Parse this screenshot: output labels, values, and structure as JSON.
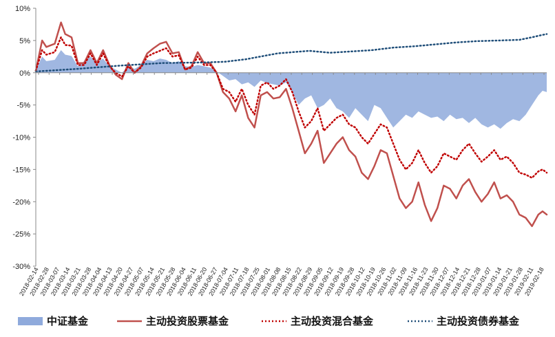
{
  "chart_data": {
    "type": "line",
    "title": "",
    "xlabel": "",
    "ylabel": "",
    "ylim": [
      -30,
      10
    ],
    "y_ticks": [
      10,
      5,
      0,
      -5,
      -10,
      -15,
      -20,
      -25,
      -30
    ],
    "y_tick_labels": [
      "10%",
      "5%",
      "0%",
      "-5%",
      "-10%",
      "-15%",
      "-20%",
      "-25%",
      "-30%"
    ],
    "grid": false,
    "legend_position": "bottom",
    "x_tick_labels": [
      "2018-02-14",
      "2018-02-28",
      "2018-03-07",
      "2018-03-14",
      "2018-03-21",
      "2018-03-28",
      "2018-04-04",
      "2018-04-13",
      "2018-04-20",
      "2018-04-27",
      "2018-05-07",
      "2018-05-14",
      "2018-05-21",
      "2018-05-28",
      "2018-06-04",
      "2018-06-11",
      "2018-06-20",
      "2018-06-27",
      "2018-07-04",
      "2018-07-11",
      "2018-07-18",
      "2018-07-25",
      "2018-08-01",
      "2018-08-08",
      "2018-08-15",
      "2018-08-22",
      "2018-08-29",
      "2018-09-05",
      "2018-09-12",
      "2018-09-19",
      "2018-09-28",
      "2018-10-12",
      "2018-10-19",
      "2018-10-26",
      "2018-11-02",
      "2018-11-09",
      "2018-11-16",
      "2018-11-23",
      "2018-11-30",
      "2018-12-07",
      "2018-12-14",
      "2018-12-21",
      "2018-12-28",
      "2019-01-07",
      "2019-01-14",
      "2019-01-21",
      "2019-01-28",
      "2019-02-11",
      "2019-02-18"
    ],
    "x_point_count": 244,
    "series": [
      {
        "name": "中证基金",
        "style": "area",
        "color": "#8faadc",
        "values": [
          [
            0,
            0.4
          ],
          [
            3,
            2.5
          ],
          [
            5,
            1.8
          ],
          [
            9,
            2
          ],
          [
            12,
            3.5
          ],
          [
            14,
            2.8
          ],
          [
            17,
            2.6
          ],
          [
            20,
            1
          ],
          [
            23,
            1.8
          ],
          [
            26,
            2.5
          ],
          [
            29,
            1.6
          ],
          [
            32,
            2.2
          ],
          [
            35,
            1
          ],
          [
            38,
            0.5
          ],
          [
            41,
            0
          ],
          [
            44,
            1
          ],
          [
            47,
            0.6
          ],
          [
            50,
            1.2
          ],
          [
            53,
            2
          ],
          [
            56,
            1.8
          ],
          [
            59,
            2.2
          ],
          [
            62,
            2
          ],
          [
            65,
            1.5
          ],
          [
            68,
            1.8
          ],
          [
            71,
            1
          ],
          [
            74,
            0.9
          ],
          [
            77,
            1.2
          ],
          [
            80,
            1
          ],
          [
            83,
            0.8
          ],
          [
            86,
            0.2
          ],
          [
            89,
            -0.5
          ],
          [
            92,
            -1.2
          ],
          [
            95,
            -1
          ],
          [
            98,
            -1.8
          ],
          [
            101,
            -1.5
          ],
          [
            104,
            -2.2
          ],
          [
            107,
            -1.2
          ],
          [
            110,
            -1.6
          ],
          [
            113,
            -1.8
          ],
          [
            116,
            -2
          ],
          [
            119,
            -1.5
          ],
          [
            122,
            -3
          ],
          [
            125,
            -5
          ],
          [
            128,
            -4
          ],
          [
            131,
            -3.5
          ],
          [
            134,
            -5.5
          ],
          [
            137,
            -5
          ],
          [
            140,
            -4
          ],
          [
            143,
            -5.5
          ],
          [
            146,
            -6
          ],
          [
            149,
            -7
          ],
          [
            152,
            -5.5
          ],
          [
            155,
            -6.5
          ],
          [
            158,
            -7.5
          ],
          [
            161,
            -5
          ],
          [
            164,
            -5.5
          ],
          [
            167,
            -7
          ],
          [
            170,
            -8.5
          ],
          [
            173,
            -7.5
          ],
          [
            176,
            -6.5
          ],
          [
            179,
            -7
          ],
          [
            182,
            -6
          ],
          [
            185,
            -6.5
          ],
          [
            188,
            -7
          ],
          [
            191,
            -6.8
          ],
          [
            194,
            -7.5
          ],
          [
            197,
            -6.5
          ],
          [
            200,
            -7.2
          ],
          [
            203,
            -7
          ],
          [
            206,
            -7.8
          ],
          [
            209,
            -7
          ],
          [
            212,
            -8
          ],
          [
            215,
            -8.5
          ],
          [
            218,
            -8
          ],
          [
            221,
            -8.7
          ],
          [
            224,
            -7.8
          ],
          [
            227,
            -7.2
          ],
          [
            230,
            -7.5
          ],
          [
            233,
            -6.5
          ],
          [
            236,
            -5
          ],
          [
            239,
            -3.5
          ],
          [
            241,
            -2.8
          ],
          [
            243,
            -3
          ]
        ]
      },
      {
        "name": "主动投资股票基金",
        "style": "solid",
        "color": "#c0504d",
        "values": [
          [
            0,
            0.3
          ],
          [
            3,
            5
          ],
          [
            5,
            4
          ],
          [
            9,
            4.5
          ],
          [
            12,
            7.8
          ],
          [
            14,
            6
          ],
          [
            17,
            5.5
          ],
          [
            20,
            1.5
          ],
          [
            23,
            1.5
          ],
          [
            26,
            3.5
          ],
          [
            29,
            1.5
          ],
          [
            32,
            3.5
          ],
          [
            35,
            1.2
          ],
          [
            38,
            -0.3
          ],
          [
            41,
            -1
          ],
          [
            44,
            1.5
          ],
          [
            47,
            0
          ],
          [
            50,
            1
          ],
          [
            53,
            3
          ],
          [
            56,
            3.8
          ],
          [
            59,
            4.5
          ],
          [
            62,
            4.8
          ],
          [
            65,
            3
          ],
          [
            68,
            3.2
          ],
          [
            71,
            0.5
          ],
          [
            74,
            1
          ],
          [
            77,
            3.2
          ],
          [
            80,
            1.5
          ],
          [
            83,
            1.5
          ],
          [
            86,
            0
          ],
          [
            89,
            -3
          ],
          [
            92,
            -4
          ],
          [
            95,
            -6
          ],
          [
            98,
            -3.5
          ],
          [
            101,
            -7
          ],
          [
            104,
            -8.5
          ],
          [
            107,
            -3.5
          ],
          [
            110,
            -3
          ],
          [
            113,
            -4
          ],
          [
            116,
            -3.8
          ],
          [
            119,
            -2.5
          ],
          [
            122,
            -5.5
          ],
          [
            125,
            -9
          ],
          [
            128,
            -12.5
          ],
          [
            131,
            -11
          ],
          [
            134,
            -9
          ],
          [
            137,
            -14
          ],
          [
            140,
            -12.5
          ],
          [
            143,
            -11
          ],
          [
            146,
            -10
          ],
          [
            149,
            -12
          ],
          [
            152,
            -13
          ],
          [
            155,
            -15.5
          ],
          [
            158,
            -16.5
          ],
          [
            161,
            -14.5
          ],
          [
            164,
            -12
          ],
          [
            167,
            -12.5
          ],
          [
            170,
            -16
          ],
          [
            173,
            -19.5
          ],
          [
            176,
            -21
          ],
          [
            179,
            -20
          ],
          [
            182,
            -17
          ],
          [
            185,
            -20.5
          ],
          [
            188,
            -23
          ],
          [
            191,
            -21
          ],
          [
            194,
            -17.5
          ],
          [
            197,
            -18
          ],
          [
            200,
            -19.5
          ],
          [
            203,
            -17.5
          ],
          [
            206,
            -16.5
          ],
          [
            209,
            -18.5
          ],
          [
            212,
            -20
          ],
          [
            215,
            -18.8
          ],
          [
            218,
            -17
          ],
          [
            221,
            -19.5
          ],
          [
            224,
            -19
          ],
          [
            227,
            -20
          ],
          [
            230,
            -22
          ],
          [
            233,
            -22.5
          ],
          [
            236,
            -23.8
          ],
          [
            239,
            -22
          ],
          [
            241,
            -21.5
          ],
          [
            243,
            -22
          ]
        ]
      },
      {
        "name": "主动投资混合基金",
        "style": "dotted",
        "color": "#c00000",
        "values": [
          [
            0,
            0.3
          ],
          [
            3,
            3.5
          ],
          [
            5,
            2.8
          ],
          [
            9,
            3.2
          ],
          [
            12,
            5.5
          ],
          [
            14,
            4.3
          ],
          [
            17,
            4.2
          ],
          [
            20,
            1.2
          ],
          [
            23,
            1.2
          ],
          [
            26,
            3
          ],
          [
            29,
            1.2
          ],
          [
            32,
            3
          ],
          [
            35,
            1
          ],
          [
            38,
            0
          ],
          [
            41,
            -0.6
          ],
          [
            44,
            1
          ],
          [
            47,
            0
          ],
          [
            50,
            0.8
          ],
          [
            53,
            2.5
          ],
          [
            56,
            3
          ],
          [
            59,
            3.4
          ],
          [
            62,
            3.8
          ],
          [
            65,
            2.5
          ],
          [
            68,
            2.7
          ],
          [
            71,
            0.5
          ],
          [
            74,
            0.8
          ],
          [
            77,
            2.5
          ],
          [
            80,
            1.2
          ],
          [
            83,
            1.2
          ],
          [
            86,
            0
          ],
          [
            89,
            -2.5
          ],
          [
            92,
            -3
          ],
          [
            95,
            -4.5
          ],
          [
            98,
            -2.5
          ],
          [
            101,
            -5
          ],
          [
            104,
            -6.5
          ],
          [
            107,
            -2
          ],
          [
            110,
            -1.5
          ],
          [
            113,
            -2.5
          ],
          [
            116,
            -2
          ],
          [
            119,
            -1
          ],
          [
            122,
            -3
          ],
          [
            125,
            -6
          ],
          [
            128,
            -8.5
          ],
          [
            131,
            -7.5
          ],
          [
            134,
            -5.5
          ],
          [
            137,
            -9
          ],
          [
            140,
            -8
          ],
          [
            143,
            -7
          ],
          [
            146,
            -6.5
          ],
          [
            149,
            -8
          ],
          [
            152,
            -8.5
          ],
          [
            155,
            -10
          ],
          [
            158,
            -11
          ],
          [
            161,
            -9.5
          ],
          [
            164,
            -8
          ],
          [
            167,
            -8.5
          ],
          [
            170,
            -11
          ],
          [
            173,
            -13.5
          ],
          [
            176,
            -15
          ],
          [
            179,
            -14
          ],
          [
            182,
            -12
          ],
          [
            185,
            -14
          ],
          [
            188,
            -15.5
          ],
          [
            191,
            -14.5
          ],
          [
            194,
            -12.5
          ],
          [
            197,
            -13
          ],
          [
            200,
            -13.5
          ],
          [
            203,
            -12
          ],
          [
            206,
            -11
          ],
          [
            209,
            -12.5
          ],
          [
            212,
            -13.8
          ],
          [
            215,
            -13
          ],
          [
            218,
            -12
          ],
          [
            221,
            -13.5
          ],
          [
            224,
            -13
          ],
          [
            227,
            -14
          ],
          [
            230,
            -15.5
          ],
          [
            233,
            -15.8
          ],
          [
            236,
            -16.3
          ],
          [
            239,
            -15.3
          ],
          [
            241,
            -15
          ],
          [
            243,
            -15.5
          ]
        ]
      },
      {
        "name": "主动投资债券基金",
        "style": "dotted",
        "color": "#1f4e79",
        "values": [
          [
            0,
            0.2
          ],
          [
            20,
            0.6
          ],
          [
            40,
            1.1
          ],
          [
            60,
            1.5
          ],
          [
            80,
            1.6
          ],
          [
            90,
            1.7
          ],
          [
            100,
            2.1
          ],
          [
            115,
            3
          ],
          [
            130,
            3.4
          ],
          [
            140,
            3.1
          ],
          [
            150,
            3.3
          ],
          [
            160,
            3.5
          ],
          [
            170,
            3.9
          ],
          [
            180,
            4.1
          ],
          [
            190,
            4.4
          ],
          [
            200,
            4.7
          ],
          [
            210,
            4.9
          ],
          [
            220,
            5
          ],
          [
            230,
            5.1
          ],
          [
            236,
            5.5
          ],
          [
            240,
            5.8
          ],
          [
            243,
            6
          ]
        ]
      }
    ]
  }
}
